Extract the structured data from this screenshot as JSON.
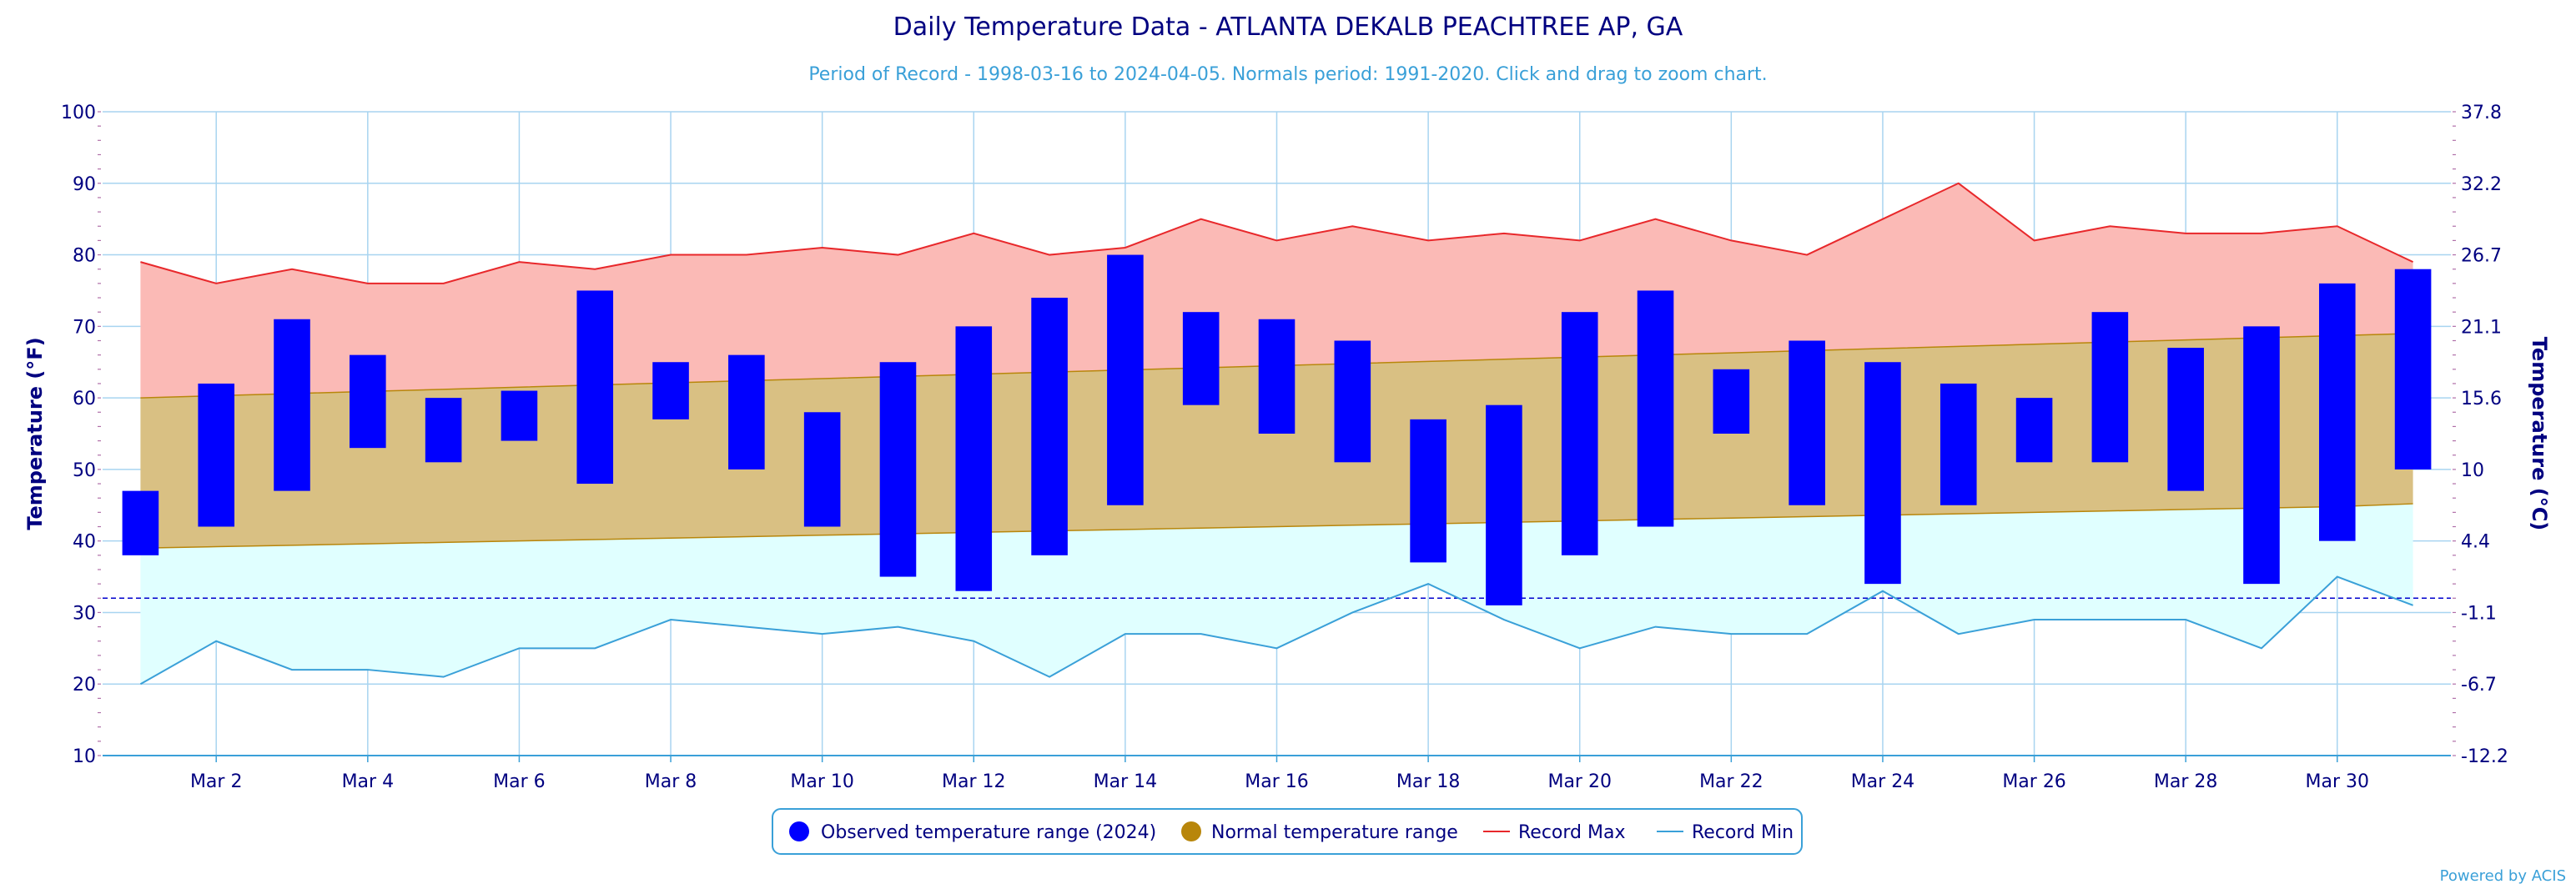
{
  "chart_data": {
    "type": "bar",
    "title": "Daily Temperature Data - ATLANTA DEKALB PEACHTREE AP, GA",
    "subtitle": "Period of Record - 1998-03-16 to 2024-04-05. Normals period: 1991-2020. Click and drag to zoom chart.",
    "ylabel": "Temperature (°F)",
    "ylabel_right": "Temperature (°C)",
    "ylim": [
      10,
      100
    ],
    "yticks": [
      10,
      20,
      30,
      40,
      50,
      60,
      70,
      80,
      90,
      100
    ],
    "yticks_right": [
      "-12.2",
      "-6.7",
      "-1.1",
      "4.4",
      "10",
      "15.6",
      "21.1",
      "26.7",
      "32.2",
      "37.8"
    ],
    "freezing_line_f": 32,
    "grid": true,
    "days": [
      1,
      2,
      3,
      4,
      5,
      6,
      7,
      8,
      9,
      10,
      11,
      12,
      13,
      14,
      15,
      16,
      17,
      18,
      19,
      20,
      21,
      22,
      23,
      24,
      25,
      26,
      27,
      28,
      29,
      30,
      31
    ],
    "x_tick_labels": [
      "Mar 2",
      "Mar 4",
      "Mar 6",
      "Mar 8",
      "Mar 10",
      "Mar 12",
      "Mar 14",
      "Mar 16",
      "Mar 18",
      "Mar 20",
      "Mar 22",
      "Mar 24",
      "Mar 26",
      "Mar 28",
      "Mar 30"
    ],
    "x_tick_days": [
      2,
      4,
      6,
      8,
      10,
      12,
      14,
      16,
      18,
      20,
      22,
      24,
      26,
      28,
      30
    ],
    "observed_max": [
      47,
      62,
      71,
      66,
      60,
      61,
      75,
      65,
      66,
      58,
      65,
      70,
      74,
      80,
      72,
      71,
      68,
      57,
      59,
      72,
      75,
      64,
      68,
      65,
      62,
      60,
      72,
      67,
      70,
      76,
      78
    ],
    "observed_min": [
      38,
      42,
      47,
      53,
      51,
      54,
      48,
      57,
      50,
      42,
      35,
      33,
      38,
      45,
      59,
      55,
      51,
      37,
      31,
      38,
      42,
      55,
      45,
      34,
      45,
      51,
      51,
      47,
      34,
      40,
      50
    ],
    "normal_max": [
      60,
      60.3,
      60.6,
      60.9,
      61.2,
      61.5,
      61.8,
      62.1,
      62.4,
      62.7,
      63,
      63.3,
      63.6,
      63.9,
      64.2,
      64.5,
      64.8,
      65.1,
      65.4,
      65.7,
      66,
      66.3,
      66.6,
      66.9,
      67.2,
      67.5,
      67.8,
      68.1,
      68.4,
      68.7,
      69
    ],
    "normal_min": [
      39,
      39.2,
      39.4,
      39.6,
      39.8,
      40,
      40.2,
      40.4,
      40.6,
      40.8,
      41,
      41.2,
      41.4,
      41.6,
      41.8,
      42,
      42.2,
      42.4,
      42.6,
      42.8,
      43,
      43.2,
      43.4,
      43.6,
      43.8,
      44,
      44.2,
      44.4,
      44.6,
      44.8,
      45.2
    ],
    "record_max": [
      79,
      76,
      78,
      76,
      76,
      79,
      78,
      80,
      80,
      81,
      80,
      83,
      80,
      81,
      85,
      82,
      84,
      82,
      83,
      82,
      85,
      82,
      80,
      85,
      90,
      82,
      84,
      83,
      83,
      84,
      79
    ],
    "record_min": [
      20,
      26,
      22,
      22,
      21,
      25,
      25,
      29,
      28,
      27,
      28,
      26,
      21,
      27,
      27,
      25,
      30,
      34,
      29,
      25,
      28,
      27,
      27,
      33,
      27,
      29,
      29,
      29,
      25,
      35,
      31
    ],
    "legend": [
      {
        "label": "Observed temperature range (2024)",
        "color": "#0000ff",
        "kind": "dot"
      },
      {
        "label": "Normal temperature range",
        "color": "#b8860b",
        "kind": "dot"
      },
      {
        "label": "Record Max",
        "color": "#e8282b",
        "kind": "line"
      },
      {
        "label": "Record Min",
        "color": "#3aa0d8",
        "kind": "line"
      }
    ],
    "legend_position": "bottom-center",
    "credit": "Powered by ACIS",
    "colors": {
      "observed": "#0000ff",
      "normal_fill": "#d9c083",
      "normal_line": "#b8860b",
      "record_max_fill": "#fbbab6",
      "record_max_line": "#e8282b",
      "record_min_fill": "#e0ffff",
      "record_min_line": "#3aa0d8",
      "grid": "#a8d4f0",
      "text": "#000080",
      "freezing": "#0000cc"
    }
  }
}
